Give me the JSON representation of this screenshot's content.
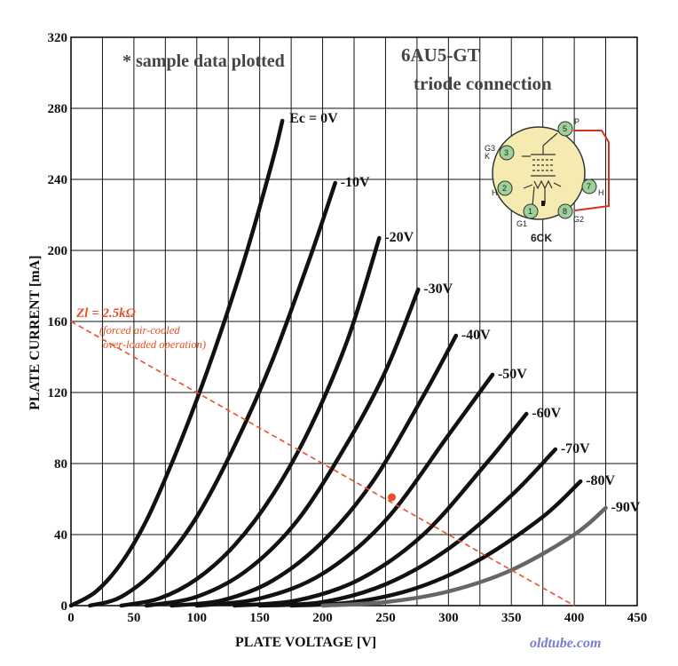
{
  "chart_data": {
    "type": "line",
    "title": "6AU5-GT",
    "subtitle": "triode connection",
    "note": "* sample data plotted",
    "xlabel": "PLATE VOLTAGE  [V]",
    "ylabel": "PLATE CURRENT  [mA]",
    "xlim": [
      0,
      450
    ],
    "ylim": [
      0,
      320
    ],
    "x_ticks": [
      "0",
      "50",
      "100",
      "150",
      "200",
      "250",
      "300",
      "350",
      "400",
      "450"
    ],
    "y_ticks": [
      "0",
      "40",
      "80",
      "120",
      "160",
      "200",
      "240",
      "280",
      "320"
    ],
    "grid": true,
    "series": [
      {
        "name": "Ec = 0V",
        "label": "Ec = 0V",
        "x": [
          0,
          20,
          40,
          60,
          80,
          100,
          120,
          140,
          160,
          168
        ],
        "y": [
          0,
          8,
          24,
          48,
          80,
          116,
          156,
          200,
          250,
          273
        ]
      },
      {
        "name": "-10V",
        "label": "-10V",
        "x": [
          15,
          40,
          70,
          100,
          130,
          160,
          190,
          210
        ],
        "y": [
          0,
          5,
          22,
          50,
          90,
          138,
          196,
          238
        ]
      },
      {
        "name": "-20V",
        "label": "-20V",
        "x": [
          40,
          70,
          100,
          130,
          160,
          190,
          220,
          245
        ],
        "y": [
          0,
          4,
          15,
          34,
          62,
          100,
          150,
          207
        ]
      },
      {
        "name": "-30V",
        "label": "-30V",
        "x": [
          60,
          100,
          140,
          180,
          220,
          250,
          276
        ],
        "y": [
          0,
          5,
          20,
          48,
          92,
          132,
          178
        ]
      },
      {
        "name": "-40V",
        "label": "-40V",
        "x": [
          80,
          120,
          160,
          200,
          240,
          280,
          306
        ],
        "y": [
          0,
          3,
          14,
          36,
          70,
          118,
          152
        ]
      },
      {
        "name": "-50V",
        "label": "-50V",
        "x": [
          100,
          150,
          200,
          250,
          300,
          335
        ],
        "y": [
          0,
          4,
          18,
          48,
          96,
          130
        ]
      },
      {
        "name": "-60V",
        "label": "-60V",
        "x": [
          130,
          180,
          230,
          280,
          330,
          362
        ],
        "y": [
          0,
          3,
          15,
          40,
          80,
          108
        ]
      },
      {
        "name": "-70V",
        "label": "-70V",
        "x": [
          150,
          200,
          250,
          300,
          350,
          385
        ],
        "y": [
          0,
          2,
          12,
          32,
          62,
          88
        ]
      },
      {
        "name": "-80V",
        "label": "-80V",
        "x": [
          175,
          225,
          275,
          325,
          375,
          405
        ],
        "y": [
          0,
          2,
          10,
          26,
          50,
          70
        ]
      },
      {
        "name": "-90V",
        "label": "-90V",
        "x": [
          200,
          250,
          300,
          350,
          400,
          425
        ],
        "y": [
          0,
          2,
          8,
          20,
          40,
          55
        ]
      }
    ],
    "load_line": {
      "label": "Zl = 2.5kΩ",
      "sub1": "(forced air-cooled",
      "sub2": "over-loaded operation)",
      "x": [
        0,
        400
      ],
      "y": [
        160,
        0
      ],
      "operating_point": {
        "x": 255,
        "y": 61
      },
      "color": "#e8502a"
    },
    "tube_base": {
      "label": "6CK",
      "pins": [
        {
          "num": "5",
          "label": "P"
        },
        {
          "num": "3",
          "label": "G3\nK"
        },
        {
          "num": "2",
          "label": "H"
        },
        {
          "num": "1",
          "label": "G1"
        },
        {
          "num": "8",
          "label": "G2"
        },
        {
          "num": "7",
          "label": "H"
        }
      ]
    }
  },
  "watermark": "oldtube.com",
  "colors": {
    "curve": "#111111",
    "grid": "#111111",
    "load_line": "#e8502a",
    "base_fill": "#f5ebb0",
    "pin_fill": "#9ed09a",
    "watermark": "#7b7bd0"
  }
}
